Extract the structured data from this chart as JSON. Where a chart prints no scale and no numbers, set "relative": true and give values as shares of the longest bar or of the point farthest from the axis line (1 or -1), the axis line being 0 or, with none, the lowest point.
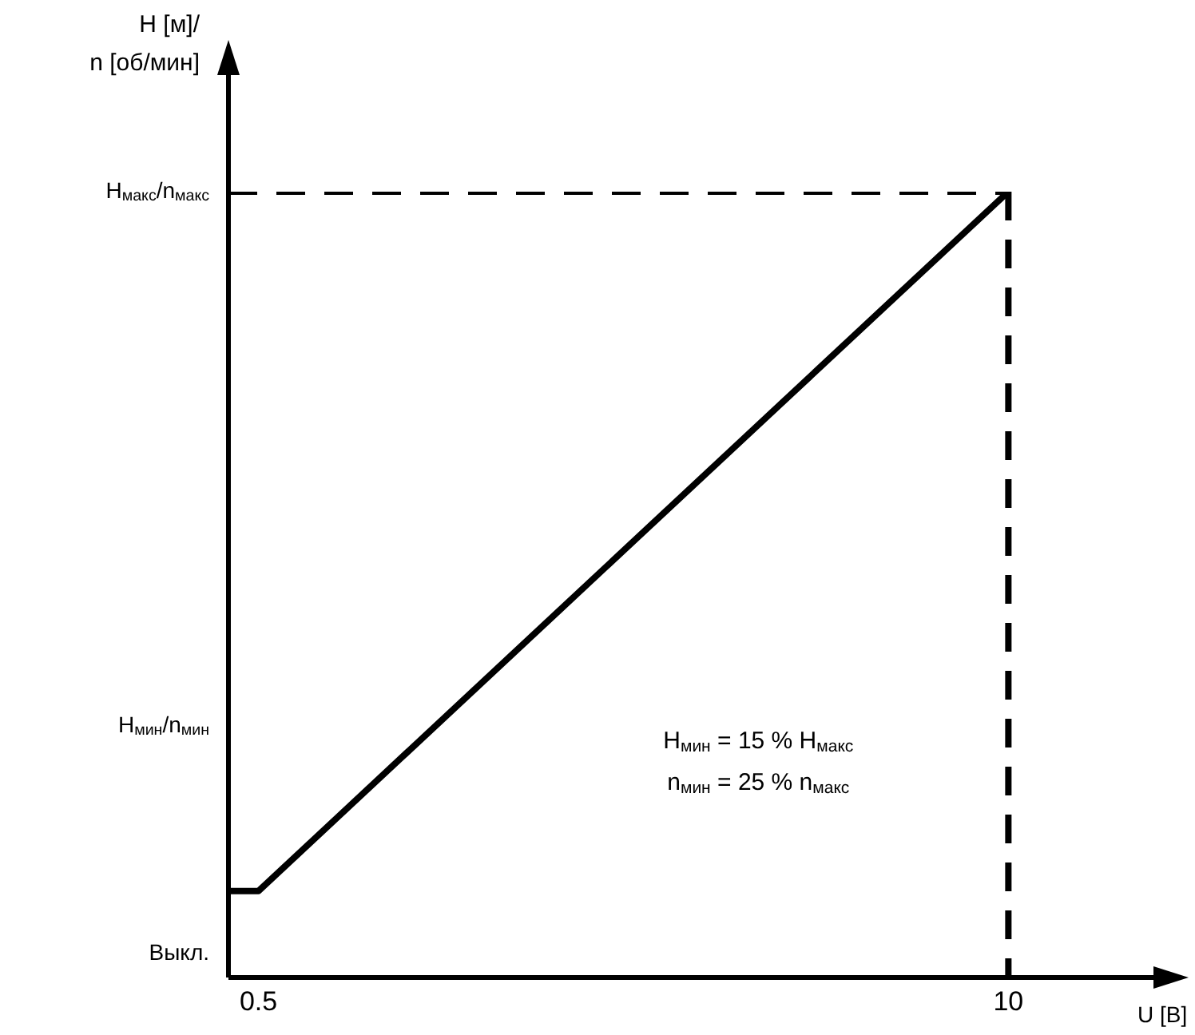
{
  "chart_data": {
    "type": "line",
    "ylabel": "H [м]/\nn [об/мин]",
    "xlabel": "U [В]",
    "annotations": [
      "H$_{мин}$ = 15 % H$_{макс}$",
      "n$_{мин}$ = 25 % n$_{макс}$",
      "Выкл.",
      "H$_{мин}$/n$_{мин}$",
      "H$_{макс}$/n$_{макс}$"
    ],
    "relative": true,
    "xlim": [
      0.12,
      12
    ],
    "xticks": [
      0.5,
      10
    ],
    "grid": false,
    "legend": false,
    "marker": "none",
    "series": [
      {
        "color": "#000000",
        "x": [
          0.12,
          0.5,
          10
        ],
        "values": [
          0.11,
          0.11,
          1
        ],
        "line_style": "solid"
      },
      {
        "color": "#000000",
        "x": [
          0.12,
          10
        ],
        "values": [
          1,
          1
        ],
        "line_style": "dashed"
      },
      {
        "color": "#000000",
        "x": [
          10,
          10
        ],
        "values": [
          1,
          0
        ],
        "line_style": "dashed"
      }
    ]
  }
}
